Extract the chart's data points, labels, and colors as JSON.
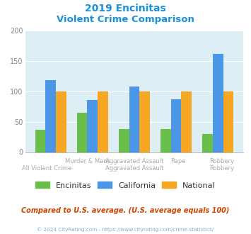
{
  "title_line1": "2019 Encinitas",
  "title_line2": "Violent Crime Comparison",
  "categories": [
    "All Violent Crime",
    "Murder & Mans...",
    "Aggravated Assault",
    "Rape",
    "Robbery"
  ],
  "encinitas": [
    37,
    65,
    38,
    38,
    30
  ],
  "california": [
    118,
    86,
    108,
    87,
    162
  ],
  "national": [
    100,
    100,
    100,
    100,
    100
  ],
  "encinitas_color": "#6abf4b",
  "california_color": "#4b96e6",
  "national_color": "#f5a623",
  "ylim": [
    0,
    200
  ],
  "yticks": [
    0,
    50,
    100,
    150,
    200
  ],
  "bg_color": "#ddeef4",
  "fig_bg": "#ffffff",
  "title_color": "#1a90d9",
  "footnote": "Compared to U.S. average. (U.S. average equals 100)",
  "footnote_color": "#cc4400",
  "copyright": "© 2024 CityRating.com - https://www.cityrating.com/crime-statistics/",
  "copyright_color": "#7ab0d4",
  "legend_labels": [
    "Encinitas",
    "California",
    "National"
  ],
  "bar_width": 0.25
}
